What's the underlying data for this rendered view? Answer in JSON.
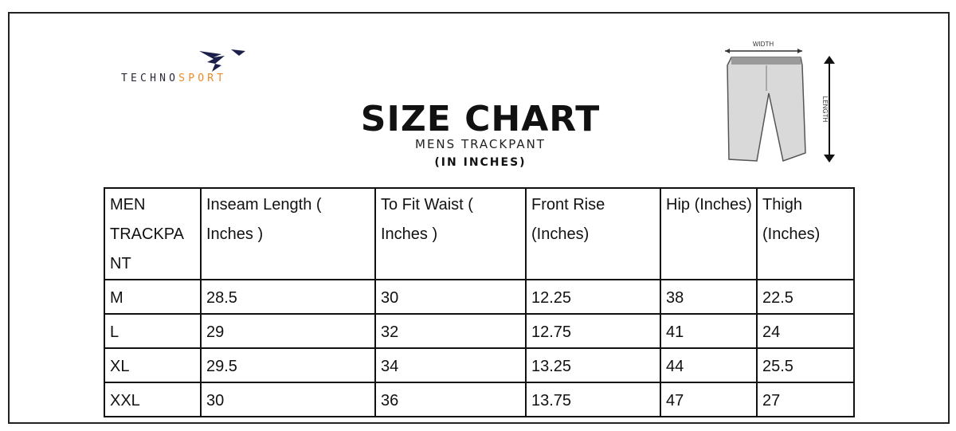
{
  "brand": {
    "part1": "TECHNO",
    "part2": "SPORT",
    "accent_color": "#f08a24",
    "logo_color": "#1c1f4a"
  },
  "title": "SIZE CHART",
  "subtitle": "MENS TRACKPANT",
  "unit": "(IN INCHES)",
  "diagram": {
    "width_label": "WIDTH",
    "length_label": "LENGTH"
  },
  "table": {
    "headers": [
      "MEN TRACKPA NT",
      "Inseam Length ( Inches )",
      "To Fit Waist ( Inches )",
      "Front Rise (Inches)",
      "Hip (Inches)",
      "Thigh (Inches)"
    ],
    "rows": [
      [
        "M",
        "28.5",
        "30",
        "12.25",
        "38",
        "22.5"
      ],
      [
        "L",
        "29",
        "32",
        "12.75",
        "41",
        "24"
      ],
      [
        "XL",
        "29.5",
        "34",
        "13.25",
        "44",
        "25.5"
      ],
      [
        "XXL",
        "30",
        "36",
        "13.75",
        "47",
        "27"
      ]
    ]
  }
}
